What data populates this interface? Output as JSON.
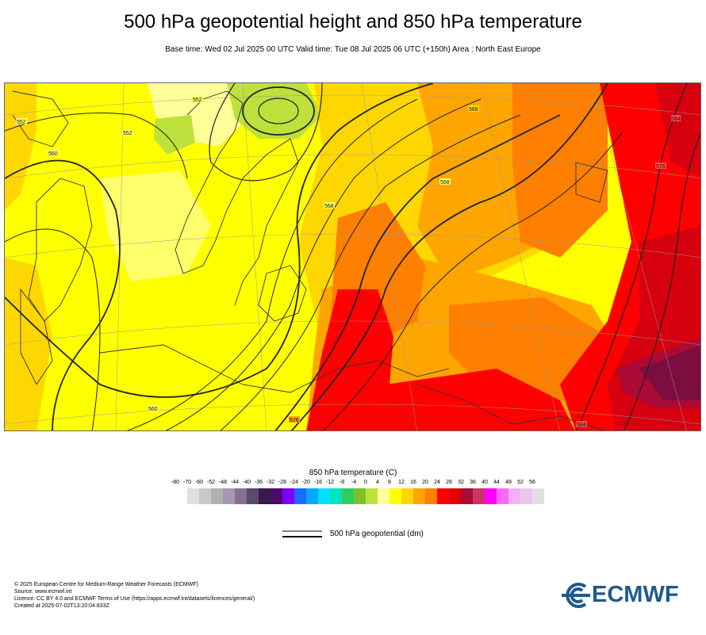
{
  "header": {
    "title": "500 hPa geopotential height and 850 hPa temperature",
    "subtitle": "Base time: Wed 02 Jul 2025 00 UTC Valid time: Tue 08 Jul 2025 06 UTC (+150h) Area : North East Europe"
  },
  "map": {
    "contour_labels": [
      "560",
      "560",
      "552",
      "552",
      "552",
      "568",
      "568",
      "576",
      "576",
      "584",
      "584",
      "568"
    ],
    "colors": {
      "yellow": "#ffff00",
      "light_yellow": "#ffff99",
      "gold": "#ffd700",
      "orange_light": "#ffa500",
      "orange": "#ff7f00",
      "red": "#ff0000",
      "dark_red": "#d7000e",
      "maroon": "#aa0a34",
      "purple_dark": "#7b0e3e",
      "green_light": "#bde13a",
      "green": "#8fd23a"
    }
  },
  "legend": {
    "title": "850 hPa temperature (C)",
    "ticks": [
      "-80",
      "-70",
      "-60",
      "-52",
      "-48",
      "-44",
      "-40",
      "-36",
      "-32",
      "-28",
      "-24",
      "-20",
      "-16",
      "-12",
      "-8",
      "-4",
      "0",
      "4",
      "8",
      "12",
      "16",
      "20",
      "24",
      "28",
      "32",
      "36",
      "40",
      "44",
      "48",
      "52",
      "56"
    ],
    "swatch_colors": [
      "#e0e0e0",
      "#c8c8c8",
      "#b0b0b0",
      "#a599b0",
      "#8a6e8f",
      "#5a4a6e",
      "#361b4f",
      "#4b0a6e",
      "#7e00ff",
      "#1c6bff",
      "#00aaff",
      "#00e0ff",
      "#00e5c0",
      "#30cc60",
      "#7ac12a",
      "#bde13a",
      "#ffff99",
      "#ffff00",
      "#ffd700",
      "#ffa500",
      "#ff7f00",
      "#ff0000",
      "#e30000",
      "#aa0a34",
      "#cc3366",
      "#ff00ff",
      "#ff66ff",
      "#f7b0f0",
      "#e8c8e8",
      "#e0e0e0"
    ],
    "geo_label": "500 hPa geopotential (dm)"
  },
  "footer": {
    "line1": "© 2025 European Centre for Medium-Range Weather Forecasts (ECMWF)",
    "line2": "Source: www.ecmwf.int",
    "line3": "Licence: CC BY 4.0 and ECMWF Terms of Use (https://apps.ecmwf.int/datasets/licences/general/)",
    "line4": "Created at 2025-07-02T13:20:04.833Z",
    "logo_text": "ECMWF"
  }
}
